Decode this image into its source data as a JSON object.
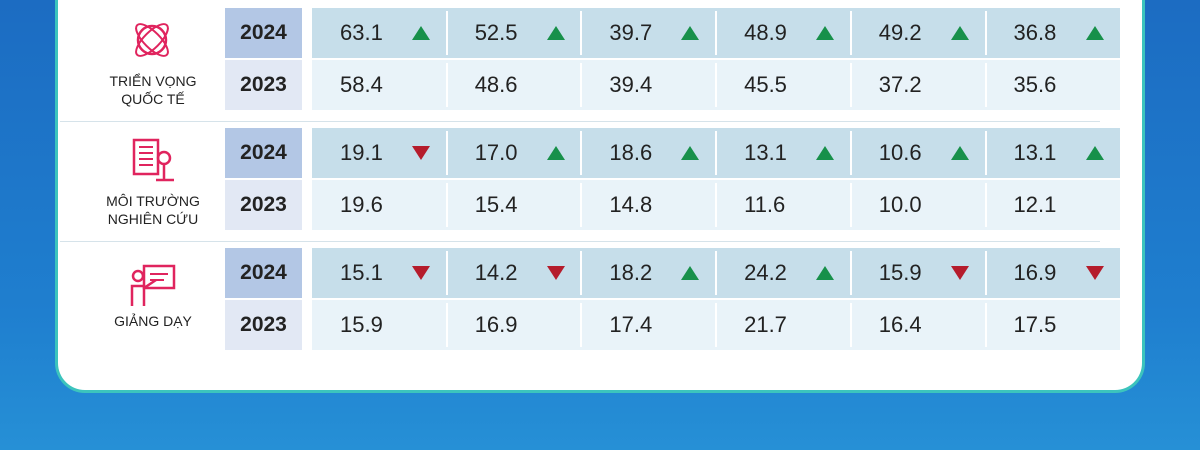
{
  "groups": [
    {
      "label_lines": [
        "TRIỂN VỌNG",
        "QUỐC TẾ"
      ],
      "icon": "globe",
      "rows": [
        {
          "year": "2024",
          "values": [
            "63.1",
            "52.5",
            "39.7",
            "48.9",
            "49.2",
            "36.8"
          ],
          "trends": [
            "up",
            "up",
            "up",
            "up",
            "up",
            "up"
          ]
        },
        {
          "year": "2023",
          "values": [
            "58.4",
            "48.6",
            "39.4",
            "45.5",
            "37.2",
            "35.6"
          ]
        }
      ]
    },
    {
      "label_lines": [
        "MÔI TRƯỜNG",
        "NGHIÊN CỨU"
      ],
      "icon": "research",
      "rows": [
        {
          "year": "2024",
          "values": [
            "19.1",
            "17.0",
            "18.6",
            "13.1",
            "10.6",
            "13.1"
          ],
          "trends": [
            "down",
            "up",
            "up",
            "up",
            "up",
            "up"
          ]
        },
        {
          "year": "2023",
          "values": [
            "19.6",
            "15.4",
            "14.8",
            "11.6",
            "10.0",
            "12.1"
          ]
        }
      ]
    },
    {
      "label_lines": [
        "GIẢNG DẠY"
      ],
      "icon": "teaching",
      "rows": [
        {
          "year": "2024",
          "values": [
            "15.1",
            "14.2",
            "18.2",
            "24.2",
            "15.9",
            "16.9"
          ],
          "trends": [
            "down",
            "down",
            "up",
            "up",
            "down",
            "down"
          ]
        },
        {
          "year": "2023",
          "values": [
            "15.9",
            "16.9",
            "17.4",
            "21.7",
            "16.4",
            "17.5"
          ]
        }
      ]
    }
  ]
}
